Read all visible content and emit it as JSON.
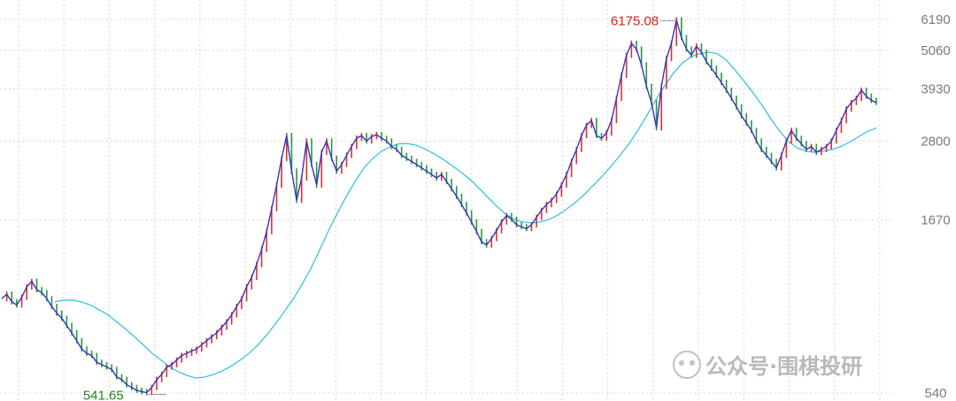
{
  "chart_data": {
    "type": "line",
    "title": "",
    "xlabel": "",
    "ylabel": "",
    "y_scale": "log",
    "ylim": [
      540,
      6190
    ],
    "yticks": [
      6190,
      5060,
      3930,
      2800,
      1670,
      540
    ],
    "ytick_labels": [
      "6190",
      "5060",
      "3930",
      "2800",
      "1670",
      "540"
    ],
    "grid": true,
    "legend": "none",
    "x_points": 250,
    "series": [
      {
        "role": "price",
        "color": "#3434c8",
        "values": [
          1000,
          1030,
          980,
          960,
          1010,
          1080,
          1120,
          1060,
          1040,
          1000,
          950,
          910,
          880,
          840,
          800,
          760,
          720,
          700,
          690,
          660,
          650,
          640,
          630,
          600,
          590,
          570,
          560,
          550,
          545,
          541.65,
          560,
          590,
          610,
          640,
          650,
          670,
          690,
          700,
          710,
          720,
          740,
          760,
          780,
          800,
          830,
          860,
          900,
          950,
          1000,
          1080,
          1150,
          1250,
          1380,
          1550,
          1800,
          2100,
          2500,
          2900,
          2300,
          1900,
          2200,
          2800,
          2400,
          2100,
          2600,
          2800,
          2500,
          2300,
          2400,
          2550,
          2700,
          2850,
          2900,
          2800,
          2880,
          2920,
          2850,
          2800,
          2700,
          2650,
          2550,
          2500,
          2450,
          2400,
          2350,
          2300,
          2250,
          2200,
          2250,
          2150,
          2050,
          1950,
          1850,
          1750,
          1650,
          1550,
          1450,
          1420,
          1480,
          1560,
          1650,
          1720,
          1680,
          1620,
          1600,
          1580,
          1620,
          1700,
          1780,
          1850,
          1900,
          1980,
          2100,
          2250,
          2450,
          2650,
          2900,
          3100,
          3200,
          2900,
          2850,
          2950,
          3200,
          3700,
          4300,
          4900,
          5300,
          5100,
          4600,
          4000,
          3600,
          3050,
          4000,
          4800,
          5300,
          6175.08,
          5500,
          5100,
          4900,
          5200,
          5000,
          4700,
          4500,
          4300,
          4100,
          3900,
          3700,
          3500,
          3300,
          3150,
          3000,
          2800,
          2650,
          2550,
          2450,
          2350,
          2550,
          2800,
          3000,
          2850,
          2750,
          2650,
          2700,
          2600,
          2650,
          2700,
          2800,
          3000,
          3200,
          3450,
          3600,
          3700,
          3900,
          3750,
          3650,
          3600
        ]
      },
      {
        "role": "moving-average",
        "color": "#29bfe0",
        "values": [
          980,
          990,
          990,
          980,
          960,
          930,
          900,
          860,
          820,
          780,
          740,
          700,
          670,
          640,
          620,
          605,
          595,
          600,
          610,
          625,
          645,
          670,
          700,
          740,
          790,
          850,
          920,
          1000,
          1100,
          1220,
          1380,
          1560,
          1750,
          1950,
          2150,
          2350,
          2500,
          2620,
          2700,
          2750,
          2750,
          2720,
          2650,
          2570,
          2480,
          2380,
          2280,
          2180,
          2060,
          1940,
          1830,
          1740,
          1680,
          1650,
          1640,
          1650,
          1680,
          1730,
          1800,
          1880,
          1980,
          2100,
          2230,
          2380,
          2550,
          2750,
          3000,
          3300,
          3650,
          4000,
          4350,
          4650,
          4850,
          4950,
          5000,
          4950,
          4750,
          4450,
          4150,
          3850,
          3550,
          3250,
          3000,
          2800,
          2680,
          2620,
          2600,
          2620,
          2650,
          2700,
          2780,
          2880,
          2980,
          3050
        ]
      }
    ],
    "annotations": [
      {
        "text": "6175.08",
        "value": 6175.08,
        "kind": "high",
        "color": "#d6201f"
      },
      {
        "text": "541.65",
        "value": 541.65,
        "kind": "low",
        "color": "#1f8a1f"
      }
    ],
    "watermark": "公众号·围棋投研"
  }
}
